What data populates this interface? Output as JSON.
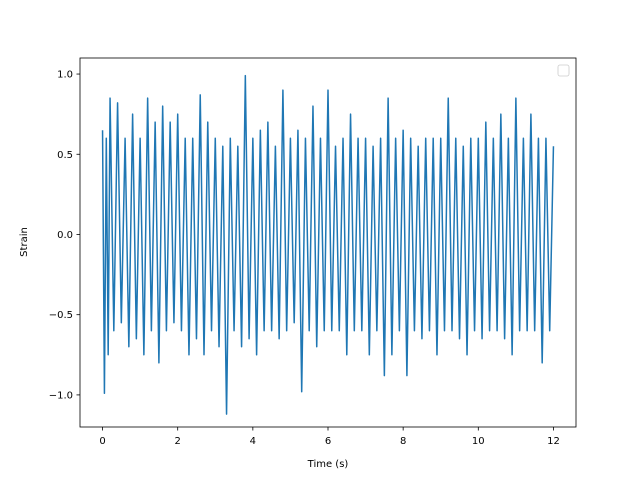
{
  "chart_data": {
    "type": "line",
    "title": "",
    "xlabel": "Time (s)",
    "ylabel": "Strain",
    "xlim": [
      -0.6,
      12.6
    ],
    "ylim": [
      -1.2,
      1.1
    ],
    "x_ticks": [
      0,
      2,
      4,
      6,
      8,
      10,
      12
    ],
    "x_tick_labels": [
      "0",
      "2",
      "4",
      "6",
      "8",
      "10",
      "12"
    ],
    "y_ticks": [
      -1.0,
      -0.5,
      0.0,
      0.5,
      1.0
    ],
    "y_tick_labels": [
      "−1.0",
      "−0.5",
      "0.0",
      "0.5",
      "1.0"
    ],
    "grid": false,
    "legend": {
      "placement": "top-right",
      "entries": []
    },
    "series_color": "#1f77b4",
    "series": [
      {
        "x": [
          0,
          0.05,
          0.1,
          0.15,
          0.2,
          0.3,
          0.4,
          0.5,
          0.6,
          0.7,
          0.8,
          0.9,
          1.0,
          1.1,
          1.2,
          1.3,
          1.4,
          1.5,
          1.6,
          1.7,
          1.8,
          1.9,
          2.0,
          2.1,
          2.2,
          2.3,
          2.4,
          2.5,
          2.6,
          2.7,
          2.8,
          2.9,
          3.0,
          3.1,
          3.2,
          3.3,
          3.4,
          3.5,
          3.6,
          3.7,
          3.8,
          3.9,
          4.0,
          4.1,
          4.2,
          4.3,
          4.4,
          4.5,
          4.6,
          4.7,
          4.8,
          4.9,
          5.0,
          5.1,
          5.2,
          5.3,
          5.4,
          5.5,
          5.6,
          5.7,
          5.8,
          5.9,
          6.0,
          6.1,
          6.2,
          6.3,
          6.4,
          6.5,
          6.6,
          6.7,
          6.8,
          6.9,
          7.0,
          7.1,
          7.2,
          7.3,
          7.4,
          7.5,
          7.6,
          7.7,
          7.8,
          7.9,
          8.0,
          8.1,
          8.2,
          8.3,
          8.4,
          8.5,
          8.6,
          8.7,
          8.8,
          8.9,
          9.0,
          9.1,
          9.2,
          9.3,
          9.4,
          9.5,
          9.6,
          9.7,
          9.8,
          9.9,
          10.0,
          10.1,
          10.2,
          10.3,
          10.4,
          10.5,
          10.6,
          10.7,
          10.8,
          10.9,
          11.0,
          11.1,
          11.2,
          11.3,
          11.4,
          11.5,
          11.6,
          11.7,
          11.8,
          11.9,
          12.0
        ],
        "y": [
          0.65,
          -0.99,
          0.6,
          -0.75,
          0.85,
          -0.6,
          0.82,
          -0.55,
          0.6,
          -0.7,
          0.75,
          -0.65,
          0.6,
          -0.75,
          0.85,
          -0.6,
          0.7,
          -0.8,
          0.8,
          -0.6,
          0.7,
          -0.55,
          0.75,
          -0.6,
          0.6,
          -0.75,
          0.6,
          -0.65,
          0.87,
          -0.75,
          0.7,
          -0.6,
          0.6,
          -0.7,
          0.55,
          -1.12,
          0.6,
          -0.6,
          0.55,
          -0.7,
          0.99,
          -0.65,
          0.6,
          -0.75,
          0.65,
          -0.6,
          0.7,
          -0.6,
          0.55,
          -0.65,
          0.9,
          -0.6,
          0.6,
          -0.55,
          0.65,
          -0.98,
          0.6,
          -0.6,
          0.8,
          -0.7,
          0.6,
          -0.6,
          0.9,
          -0.6,
          0.55,
          -0.6,
          0.6,
          -0.75,
          0.75,
          -0.6,
          0.6,
          -0.6,
          0.6,
          -0.75,
          0.55,
          -0.6,
          0.6,
          -0.88,
          0.85,
          -0.75,
          0.6,
          -0.6,
          0.65,
          -0.88,
          0.6,
          -0.6,
          0.55,
          -0.65,
          0.6,
          -0.6,
          0.6,
          -0.75,
          0.6,
          -0.6,
          0.85,
          -0.6,
          0.6,
          -0.65,
          0.55,
          -0.75,
          0.6,
          -0.6,
          0.6,
          -0.65,
          0.7,
          -0.6,
          0.6,
          -0.6,
          0.75,
          -0.65,
          0.6,
          -0.75,
          0.85,
          -0.6,
          0.6,
          -0.6,
          0.75,
          -0.6,
          0.6,
          -0.8,
          0.6,
          -0.6,
          0.55
        ]
      }
    ]
  }
}
